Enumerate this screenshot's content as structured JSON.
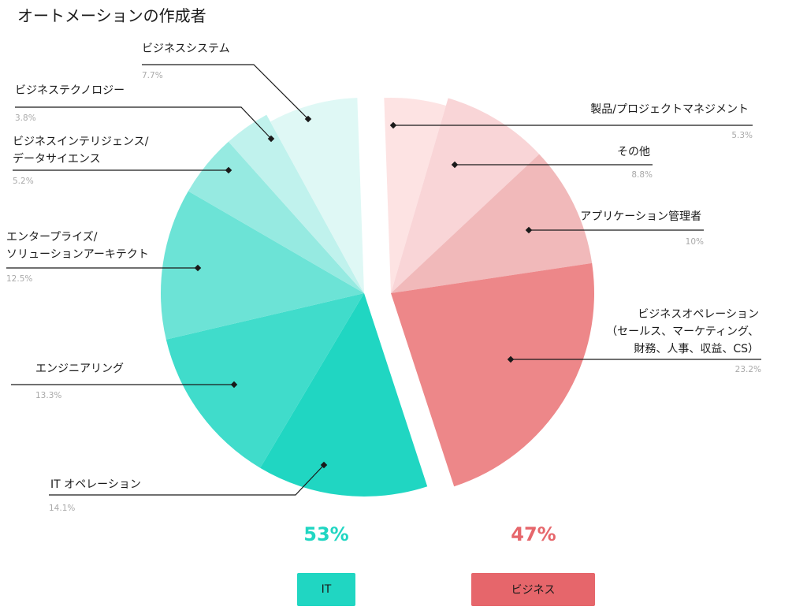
{
  "page_title": "オートメーションの作成者",
  "chart_data": {
    "type": "pie",
    "title": "オートメーションの作成者",
    "groups": [
      {
        "name": "IT",
        "total_label": "53%",
        "color": "#20d6c2"
      },
      {
        "name": "ビジネス",
        "total_label": "47%",
        "color": "#e6666b"
      }
    ],
    "slices": [
      {
        "label": "製品/プロジェクトマネジメント",
        "value": 5.3,
        "display": "5.3%",
        "group": "ビジネス",
        "color": "#fde3e3"
      },
      {
        "label": "その他",
        "value": 8.8,
        "display": "8.8%",
        "group": "ビジネス",
        "color": "#f9d5d7"
      },
      {
        "label": "アプリケーション管理者",
        "value": 10,
        "display": "10%",
        "group": "ビジネス",
        "color": "#f1b9ba"
      },
      {
        "label": "ビジネスオペレーション（セールス、マーケティング、財務、人事、収益、CS）",
        "value": 23.2,
        "display": "23.2%",
        "group": "ビジネス",
        "color": "#ed8789"
      },
      {
        "label": "IT オペレーション",
        "value": 14.1,
        "display": "14.1%",
        "group": "IT",
        "color": "#20d6c2"
      },
      {
        "label": "エンジニアリング",
        "value": 13.3,
        "display": "13.3%",
        "group": "IT",
        "color": "#40dccb"
      },
      {
        "label": "エンタープライズ/ソリューションアーキテクト",
        "value": 12.5,
        "display": "12.5%",
        "group": "IT",
        "color": "#6ce3d6"
      },
      {
        "label": "ビジネスインテリジェンス/データサイエンス",
        "value": 5.2,
        "display": "5.2%",
        "group": "IT",
        "color": "#96eae1"
      },
      {
        "label": "ビジネステクノロジー",
        "value": 3.8,
        "display": "3.8%",
        "group": "IT",
        "color": "#c0f2ed"
      },
      {
        "label": "ビジネスシステム",
        "value": 7.7,
        "display": "7.7%",
        "group": "IT",
        "color": "#dff8f5"
      }
    ]
  }
}
